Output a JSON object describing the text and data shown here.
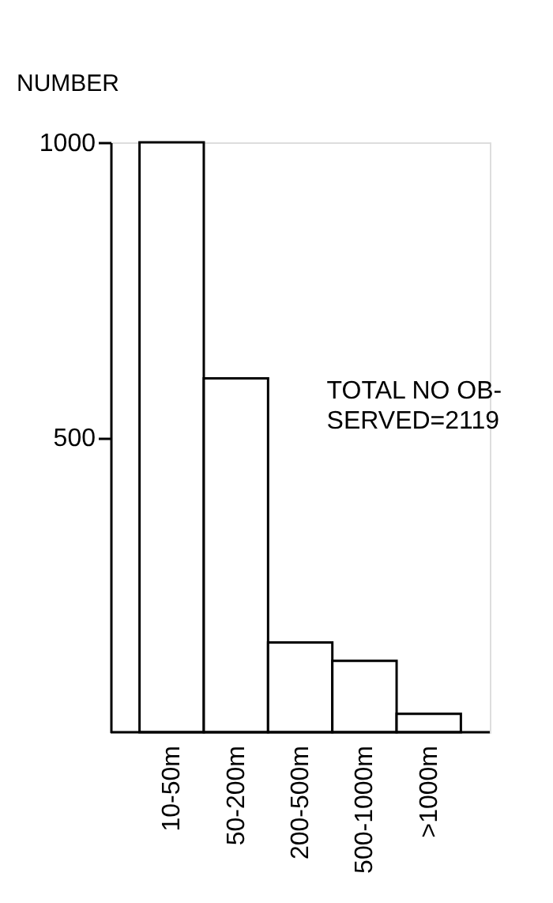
{
  "chart_data": {
    "type": "bar",
    "ylabel": "NUMBER",
    "categories": [
      "10-50m",
      "50-200m",
      "200-500m",
      "500-1000m",
      ">1000m"
    ],
    "values": [
      1000,
      600,
      152,
      121,
      31
    ],
    "color": "#ffffff",
    "ylim": [
      0,
      1000
    ],
    "yticks": [
      500,
      1000
    ],
    "grid": false,
    "annotations": [
      "TOTAL NO OB-\nSERVED=2119"
    ]
  }
}
